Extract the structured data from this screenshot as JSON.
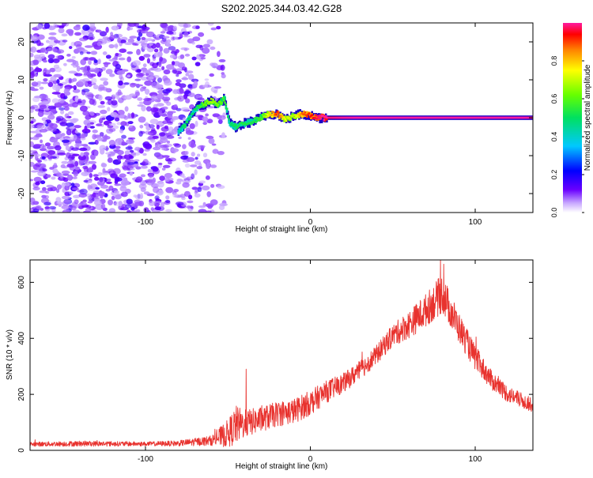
{
  "title": "S202.2025.344.03.42.G28",
  "colors": {
    "snr_line": "#e8322e",
    "axis": "#000000",
    "scatter_base": "#8a3cf0",
    "scatter_light": "#d9c6fb"
  },
  "chart_data": [
    {
      "type": "heatmap",
      "name": "spectrogram",
      "xlabel": "Height of straight line (km)",
      "ylabel": "Frequency (Hz)",
      "xlim": [
        -170,
        135
      ],
      "ylim": [
        -25,
        25
      ],
      "x_ticks": [
        -100,
        0,
        100
      ],
      "x_tick_labels": [
        "-100",
        "0",
        "100"
      ],
      "y_ticks": [
        -20,
        -10,
        0,
        10,
        20
      ],
      "y_tick_labels": [
        "-20",
        "-10",
        "0",
        "10",
        "20"
      ],
      "colorbar": {
        "label": "Normalized spectral amplitude",
        "range": [
          0,
          1
        ],
        "ticks": [
          0,
          0.2,
          0.4,
          0.6,
          0.8
        ],
        "tick_labels": [
          "0.0",
          "0.2",
          "0.4",
          "0.6",
          "0.8"
        ]
      },
      "noise_region_x": [
        -170,
        -52
      ],
      "ridge": [
        {
          "x": -80,
          "f": -3.5,
          "a": 0.25
        },
        {
          "x": -76,
          "f": -2.0,
          "a": 0.35
        },
        {
          "x": -72,
          "f": 1.0,
          "a": 0.3
        },
        {
          "x": -68,
          "f": 3.0,
          "a": 0.35
        },
        {
          "x": -64,
          "f": 3.5,
          "a": 0.45
        },
        {
          "x": -60,
          "f": 4.5,
          "a": 0.5
        },
        {
          "x": -56,
          "f": 3.5,
          "a": 0.45
        },
        {
          "x": -52,
          "f": 5.0,
          "a": 0.4
        },
        {
          "x": -49,
          "f": -1.5,
          "a": 0.3
        },
        {
          "x": -45,
          "f": -2.5,
          "a": 0.35
        },
        {
          "x": -40,
          "f": -1.5,
          "a": 0.35
        },
        {
          "x": -35,
          "f": -1.0,
          "a": 0.35
        },
        {
          "x": -30,
          "f": 0.0,
          "a": 0.4
        },
        {
          "x": -25,
          "f": 1.0,
          "a": 0.6
        },
        {
          "x": -20,
          "f": 1.0,
          "a": 0.75
        },
        {
          "x": -15,
          "f": -0.5,
          "a": 0.55
        },
        {
          "x": -10,
          "f": 0.5,
          "a": 0.5
        },
        {
          "x": -5,
          "f": 1.0,
          "a": 0.7
        },
        {
          "x": 0,
          "f": 0.5,
          "a": 0.75
        },
        {
          "x": 5,
          "f": 0.0,
          "a": 0.8
        },
        {
          "x": 10,
          "f": 0.0,
          "a": 0.85
        },
        {
          "x": 20,
          "f": 0.0,
          "a": 0.9
        },
        {
          "x": 40,
          "f": 0.0,
          "a": 0.95
        },
        {
          "x": 80,
          "f": 0.0,
          "a": 0.97
        },
        {
          "x": 120,
          "f": 0.0,
          "a": 0.95
        },
        {
          "x": 135,
          "f": 0.0,
          "a": 0.9
        }
      ]
    },
    {
      "type": "line",
      "name": "snr",
      "xlabel": "Height of straight line (km)",
      "ylabel": "SNR (10 * v/v)",
      "xlim": [
        -170,
        135
      ],
      "ylim": [
        0,
        680
      ],
      "x_ticks": [
        -100,
        0,
        100
      ],
      "x_tick_labels": [
        "-100",
        "0",
        "100"
      ],
      "y_ticks": [
        0,
        200,
        400,
        600
      ],
      "y_tick_labels": [
        "0",
        "200",
        "400",
        "600"
      ],
      "envelope": {
        "x": [
          -170,
          -140,
          -100,
          -80,
          -60,
          -50,
          -45,
          -40,
          -30,
          -20,
          -10,
          0,
          10,
          20,
          30,
          40,
          50,
          60,
          70,
          80,
          90,
          100,
          110,
          120,
          135
        ],
        "mean": [
          22,
          24,
          23,
          25,
          35,
          60,
          90,
          95,
          110,
          130,
          140,
          170,
          210,
          240,
          285,
          340,
          410,
          450,
          500,
          560,
          440,
          330,
          250,
          200,
          160
        ],
        "noise": [
          8,
          10,
          8,
          10,
          18,
          50,
          70,
          50,
          45,
          45,
          45,
          45,
          40,
          35,
          35,
          35,
          40,
          50,
          60,
          70,
          55,
          45,
          35,
          30,
          25
        ]
      },
      "peaks": [
        {
          "x": -39,
          "y": 290
        },
        {
          "x": 79,
          "y": 680
        },
        {
          "x": 81,
          "y": 665
        }
      ]
    }
  ]
}
